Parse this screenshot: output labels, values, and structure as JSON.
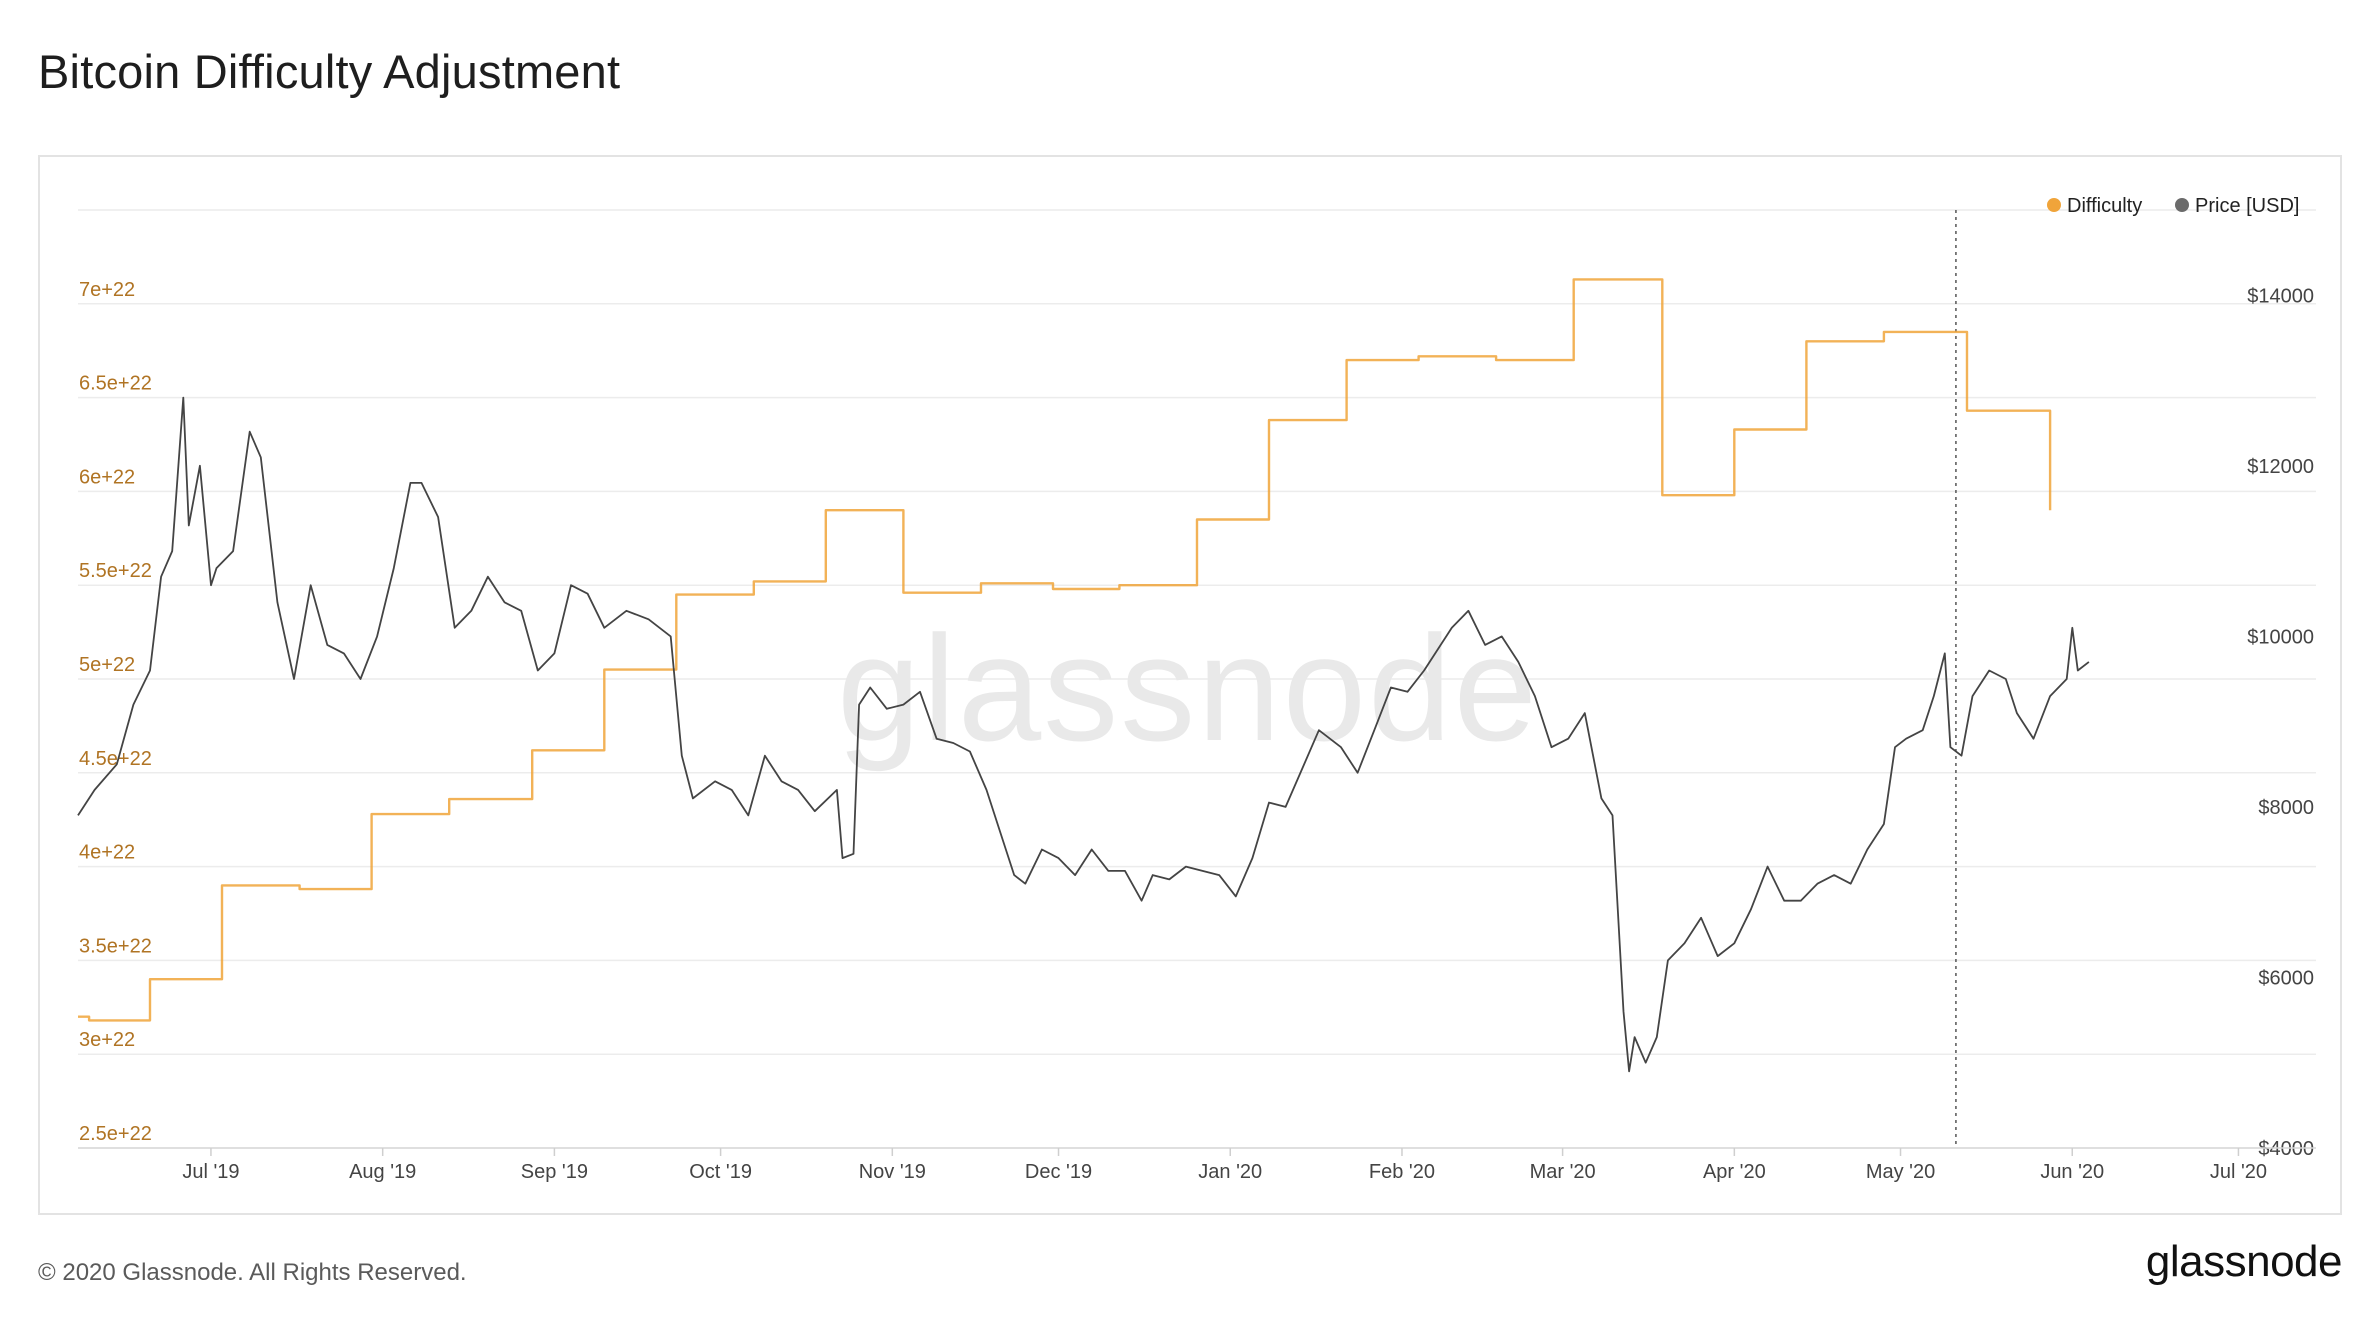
{
  "title": "Bitcoin Difficulty Adjustment",
  "footer": {
    "copyright": "© 2020 Glassnode. All Rights Reserved.",
    "logo": "glassnode"
  },
  "watermark": "glassnode",
  "colors": {
    "difficulty": "#f0a43a",
    "difficulty_axis": "#b07424",
    "price": "#444444",
    "grid": "#ececec",
    "legend_difficulty_dot": "#f0a43a",
    "legend_price_dot": "#6b6b6b"
  },
  "chart_data": {
    "type": "line",
    "legend": {
      "position": "top-right",
      "items": [
        "Difficulty",
        "Price [USD]"
      ]
    },
    "grid": true,
    "x_axis": {
      "type": "date",
      "range": [
        "2019-06-07",
        "2020-07-15"
      ],
      "ticks": [
        {
          "date": "2019-07-01",
          "label": "Jul '19"
        },
        {
          "date": "2019-08-01",
          "label": "Aug '19"
        },
        {
          "date": "2019-09-01",
          "label": "Sep '19"
        },
        {
          "date": "2019-10-01",
          "label": "Oct '19"
        },
        {
          "date": "2019-11-01",
          "label": "Nov '19"
        },
        {
          "date": "2019-12-01",
          "label": "Dec '19"
        },
        {
          "date": "2020-01-01",
          "label": "Jan '20"
        },
        {
          "date": "2020-02-01",
          "label": "Feb '20"
        },
        {
          "date": "2020-03-01",
          "label": "Mar '20"
        },
        {
          "date": "2020-04-01",
          "label": "Apr '20"
        },
        {
          "date": "2020-05-01",
          "label": "May '20"
        },
        {
          "date": "2020-06-01",
          "label": "Jun '20"
        },
        {
          "date": "2020-07-01",
          "label": "Jul '20"
        }
      ]
    },
    "y_left": {
      "name": "Difficulty",
      "range": [
        2.5e+22,
        7.5e+22
      ],
      "ticks": [
        {
          "value": 2.5e+22,
          "label": "2.5e+22"
        },
        {
          "value": 3e+22,
          "label": "3e+22"
        },
        {
          "value": 3.5e+22,
          "label": "3.5e+22"
        },
        {
          "value": 4e+22,
          "label": "4e+22"
        },
        {
          "value": 4.5e+22,
          "label": "4.5e+22"
        },
        {
          "value": 5e+22,
          "label": "5e+22"
        },
        {
          "value": 5.5e+22,
          "label": "5.5e+22"
        },
        {
          "value": 6e+22,
          "label": "6e+22"
        },
        {
          "value": 6.5e+22,
          "label": "6.5e+22"
        },
        {
          "value": 7e+22,
          "label": "7e+22"
        }
      ]
    },
    "y_right": {
      "name": "Price [USD]",
      "range": [
        4000,
        15000
      ],
      "ticks": [
        {
          "value": 4000,
          "label": "$4000"
        },
        {
          "value": 6000,
          "label": "$6000"
        },
        {
          "value": 8000,
          "label": "$8000"
        },
        {
          "value": 10000,
          "label": "$10000"
        },
        {
          "value": 12000,
          "label": "$12000"
        },
        {
          "value": 14000,
          "label": "$14000"
        }
      ]
    },
    "marker_line": {
      "date": "2020-05-11",
      "style": "dotted"
    },
    "series": [
      {
        "name": "Difficulty",
        "axis": "left",
        "step": true,
        "points": [
          [
            "2019-06-07",
            3.2e+22
          ],
          [
            "2019-06-09",
            3.18e+22
          ],
          [
            "2019-06-20",
            3.4e+22
          ],
          [
            "2019-07-03",
            3.9e+22
          ],
          [
            "2019-07-17",
            3.88e+22
          ],
          [
            "2019-07-30",
            4.28e+22
          ],
          [
            "2019-08-13",
            4.36e+22
          ],
          [
            "2019-08-28",
            4.62e+22
          ],
          [
            "2019-09-10",
            5.05e+22
          ],
          [
            "2019-09-23",
            5.45e+22
          ],
          [
            "2019-10-07",
            5.52e+22
          ],
          [
            "2019-10-20",
            5.9e+22
          ],
          [
            "2019-11-03",
            5.46e+22
          ],
          [
            "2019-11-17",
            5.51e+22
          ],
          [
            "2019-11-30",
            5.48e+22
          ],
          [
            "2019-12-12",
            5.5e+22
          ],
          [
            "2019-12-26",
            5.85e+22
          ],
          [
            "2020-01-08",
            6.38e+22
          ],
          [
            "2020-01-22",
            6.7e+22
          ],
          [
            "2020-02-04",
            6.72e+22
          ],
          [
            "2020-02-18",
            6.7e+22
          ],
          [
            "2020-03-03",
            7.13e+22
          ],
          [
            "2020-03-19",
            5.98e+22
          ],
          [
            "2020-04-01",
            6.33e+22
          ],
          [
            "2020-04-14",
            6.8e+22
          ],
          [
            "2020-04-28",
            6.85e+22
          ],
          [
            "2020-05-13",
            6.43e+22
          ],
          [
            "2020-05-28",
            5.9e+22
          ]
        ]
      },
      {
        "name": "Price [USD]",
        "axis": "right",
        "step": false,
        "points": [
          [
            "2019-06-07",
            7900
          ],
          [
            "2019-06-10",
            8200
          ],
          [
            "2019-06-14",
            8500
          ],
          [
            "2019-06-17",
            9200
          ],
          [
            "2019-06-20",
            9600
          ],
          [
            "2019-06-22",
            10700
          ],
          [
            "2019-06-24",
            11000
          ],
          [
            "2019-06-26",
            12800
          ],
          [
            "2019-06-27",
            11300
          ],
          [
            "2019-06-29",
            12000
          ],
          [
            "2019-07-01",
            10600
          ],
          [
            "2019-07-02",
            10800
          ],
          [
            "2019-07-05",
            11000
          ],
          [
            "2019-07-08",
            12400
          ],
          [
            "2019-07-10",
            12100
          ],
          [
            "2019-07-13",
            10400
          ],
          [
            "2019-07-16",
            9500
          ],
          [
            "2019-07-19",
            10600
          ],
          [
            "2019-07-22",
            9900
          ],
          [
            "2019-07-25",
            9800
          ],
          [
            "2019-07-28",
            9500
          ],
          [
            "2019-07-31",
            10000
          ],
          [
            "2019-08-03",
            10800
          ],
          [
            "2019-08-06",
            11800
          ],
          [
            "2019-08-08",
            11800
          ],
          [
            "2019-08-11",
            11400
          ],
          [
            "2019-08-14",
            10100
          ],
          [
            "2019-08-17",
            10300
          ],
          [
            "2019-08-20",
            10700
          ],
          [
            "2019-08-23",
            10400
          ],
          [
            "2019-08-26",
            10300
          ],
          [
            "2019-08-29",
            9600
          ],
          [
            "2019-09-01",
            9800
          ],
          [
            "2019-09-04",
            10600
          ],
          [
            "2019-09-07",
            10500
          ],
          [
            "2019-09-10",
            10100
          ],
          [
            "2019-09-14",
            10300
          ],
          [
            "2019-09-18",
            10200
          ],
          [
            "2019-09-22",
            10000
          ],
          [
            "2019-09-24",
            8600
          ],
          [
            "2019-09-26",
            8100
          ],
          [
            "2019-09-30",
            8300
          ],
          [
            "2019-10-03",
            8200
          ],
          [
            "2019-10-06",
            7900
          ],
          [
            "2019-10-09",
            8600
          ],
          [
            "2019-10-12",
            8300
          ],
          [
            "2019-10-15",
            8200
          ],
          [
            "2019-10-18",
            7950
          ],
          [
            "2019-10-22",
            8200
          ],
          [
            "2019-10-23",
            7400
          ],
          [
            "2019-10-25",
            7450
          ],
          [
            "2019-10-26",
            9200
          ],
          [
            "2019-10-28",
            9400
          ],
          [
            "2019-10-31",
            9150
          ],
          [
            "2019-11-03",
            9200
          ],
          [
            "2019-11-06",
            9350
          ],
          [
            "2019-11-09",
            8800
          ],
          [
            "2019-11-12",
            8750
          ],
          [
            "2019-11-15",
            8650
          ],
          [
            "2019-11-18",
            8200
          ],
          [
            "2019-11-21",
            7600
          ],
          [
            "2019-11-23",
            7200
          ],
          [
            "2019-11-25",
            7100
          ],
          [
            "2019-11-28",
            7500
          ],
          [
            "2019-12-01",
            7400
          ],
          [
            "2019-12-04",
            7200
          ],
          [
            "2019-12-07",
            7500
          ],
          [
            "2019-12-10",
            7250
          ],
          [
            "2019-12-13",
            7250
          ],
          [
            "2019-12-16",
            6900
          ],
          [
            "2019-12-18",
            7200
          ],
          [
            "2019-12-21",
            7150
          ],
          [
            "2019-12-24",
            7300
          ],
          [
            "2019-12-27",
            7250
          ],
          [
            "2019-12-30",
            7200
          ],
          [
            "2020-01-02",
            6950
          ],
          [
            "2020-01-05",
            7400
          ],
          [
            "2020-01-08",
            8050
          ],
          [
            "2020-01-11",
            8000
          ],
          [
            "2020-01-14",
            8450
          ],
          [
            "2020-01-17",
            8900
          ],
          [
            "2020-01-21",
            8700
          ],
          [
            "2020-01-24",
            8400
          ],
          [
            "2020-01-27",
            8900
          ],
          [
            "2020-01-30",
            9400
          ],
          [
            "2020-02-02",
            9350
          ],
          [
            "2020-02-05",
            9600
          ],
          [
            "2020-02-08",
            9900
          ],
          [
            "2020-02-10",
            10100
          ],
          [
            "2020-02-13",
            10300
          ],
          [
            "2020-02-16",
            9900
          ],
          [
            "2020-02-19",
            10000
          ],
          [
            "2020-02-22",
            9700
          ],
          [
            "2020-02-25",
            9300
          ],
          [
            "2020-02-28",
            8700
          ],
          [
            "2020-03-02",
            8800
          ],
          [
            "2020-03-05",
            9100
          ],
          [
            "2020-03-08",
            8100
          ],
          [
            "2020-03-10",
            7900
          ],
          [
            "2020-03-12",
            5600
          ],
          [
            "2020-03-13",
            4900
          ],
          [
            "2020-03-14",
            5300
          ],
          [
            "2020-03-16",
            5000
          ],
          [
            "2020-03-18",
            5300
          ],
          [
            "2020-03-20",
            6200
          ],
          [
            "2020-03-23",
            6400
          ],
          [
            "2020-03-26",
            6700
          ],
          [
            "2020-03-29",
            6250
          ],
          [
            "2020-04-01",
            6400
          ],
          [
            "2020-04-04",
            6800
          ],
          [
            "2020-04-07",
            7300
          ],
          [
            "2020-04-10",
            6900
          ],
          [
            "2020-04-13",
            6900
          ],
          [
            "2020-04-16",
            7100
          ],
          [
            "2020-04-19",
            7200
          ],
          [
            "2020-04-22",
            7100
          ],
          [
            "2020-04-25",
            7500
          ],
          [
            "2020-04-28",
            7800
          ],
          [
            "2020-04-30",
            8700
          ],
          [
            "2020-05-02",
            8800
          ],
          [
            "2020-05-05",
            8900
          ],
          [
            "2020-05-07",
            9300
          ],
          [
            "2020-05-09",
            9800
          ],
          [
            "2020-05-10",
            8700
          ],
          [
            "2020-05-12",
            8600
          ],
          [
            "2020-05-14",
            9300
          ],
          [
            "2020-05-17",
            9600
          ],
          [
            "2020-05-20",
            9500
          ],
          [
            "2020-05-22",
            9100
          ],
          [
            "2020-05-25",
            8800
          ],
          [
            "2020-05-28",
            9300
          ],
          [
            "2020-05-31",
            9500
          ],
          [
            "2020-06-01",
            10100
          ],
          [
            "2020-06-02",
            9600
          ],
          [
            "2020-06-04",
            9700
          ]
        ]
      }
    ]
  }
}
